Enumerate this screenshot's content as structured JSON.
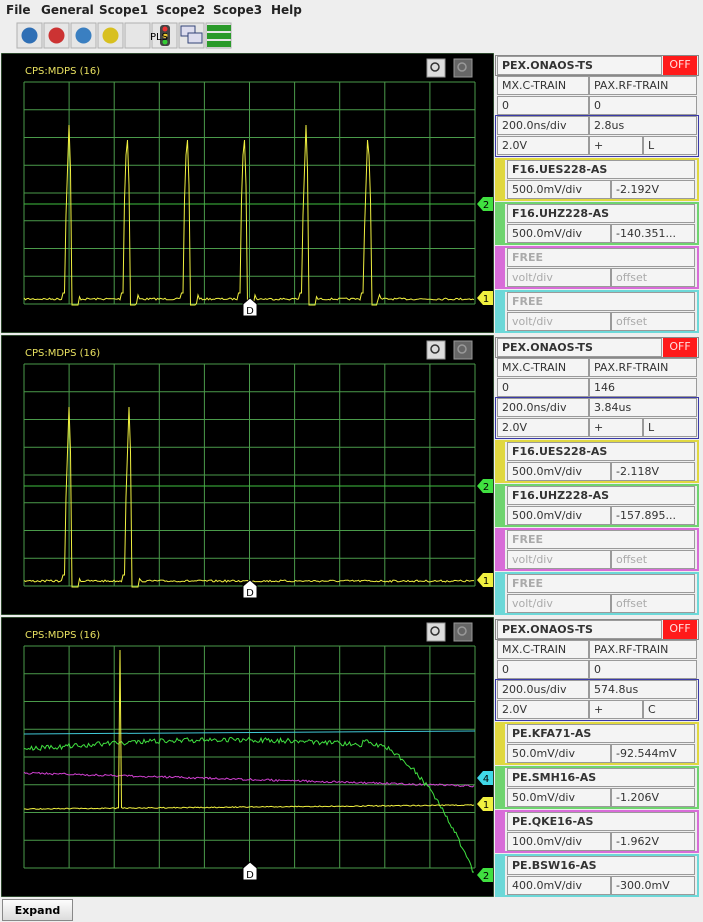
{
  "menu": [
    "File",
    "General",
    "Scope1",
    "Scope2",
    "Scope3",
    "Help"
  ],
  "toolbar": {
    "pls": "PLS"
  },
  "panels": [
    {
      "scope_label": "CPS:MDPS (16)",
      "device": "PEX.ONAOS-TS",
      "status": "OFF",
      "timing": {
        "train_a": "MX.C-TRAIN",
        "train_b": "PAX.RF-TRAIN",
        "value_a": "0",
        "value_b": "0",
        "time_div": "200.0ns/div",
        "delay": "2.8us",
        "trigger_level": "2.0V",
        "slope": "+",
        "coupling": "L"
      },
      "channels": [
        {
          "name": "F16.UES228-AS",
          "volt_div": "500.0mV/div",
          "offset": "-2.192V"
        },
        {
          "name": "F16.UHZ228-AS",
          "volt_div": "500.0mV/div",
          "offset": "-140.351..."
        },
        {
          "name": "FREE",
          "volt_div": "volt/div",
          "offset": "offset"
        },
        {
          "name": "FREE",
          "volt_div": "volt/div",
          "offset": "offset"
        }
      ],
      "trace_markers": [
        "2",
        "1"
      ],
      "time_marker": "D"
    },
    {
      "scope_label": "CPS:MDPS (16)",
      "device": "PEX.ONAOS-TS",
      "status": "OFF",
      "timing": {
        "train_a": "MX.C-TRAIN",
        "train_b": "PAX.RF-TRAIN",
        "value_a": "0",
        "value_b": "146",
        "time_div": "200.0ns/div",
        "delay": "3.84us",
        "trigger_level": "2.0V",
        "slope": "+",
        "coupling": "L"
      },
      "channels": [
        {
          "name": "F16.UES228-AS",
          "volt_div": "500.0mV/div",
          "offset": "-2.118V"
        },
        {
          "name": "F16.UHZ228-AS",
          "volt_div": "500.0mV/div",
          "offset": "-157.895..."
        },
        {
          "name": "FREE",
          "volt_div": "volt/div",
          "offset": "offset"
        },
        {
          "name": "FREE",
          "volt_div": "volt/div",
          "offset": "offset"
        }
      ],
      "trace_markers": [
        "2",
        "1"
      ],
      "time_marker": "D"
    },
    {
      "scope_label": "CPS:MDPS (16)",
      "device": "PEX.ONAOS-TS",
      "status": "OFF",
      "timing": {
        "train_a": "MX.C-TRAIN",
        "train_b": "PAX.RF-TRAIN",
        "value_a": "0",
        "value_b": "0",
        "time_div": "200.0us/div",
        "delay": "574.8us",
        "trigger_level": "2.0V",
        "slope": "+",
        "coupling": "C"
      },
      "channels": [
        {
          "name": "PE.KFA71-AS",
          "volt_div": "50.0mV/div",
          "offset": "-92.544mV"
        },
        {
          "name": "PE.SMH16-AS",
          "volt_div": "50.0mV/div",
          "offset": "-1.206V"
        },
        {
          "name": "PE.QKE16-AS",
          "volt_div": "100.0mV/div",
          "offset": "-1.962V"
        },
        {
          "name": "PE.BSW16-AS",
          "volt_div": "400.0mV/div",
          "offset": "-300.0mV"
        }
      ],
      "trace_markers": [
        "4",
        "1",
        "2"
      ],
      "time_marker": "D"
    }
  ],
  "expand_button": "Expand"
}
